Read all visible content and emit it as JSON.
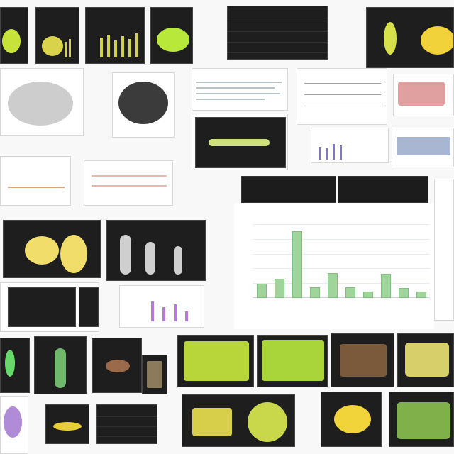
{
  "page": {
    "background": "#f7f8f7",
    "accent_yellow": "#d7e24a",
    "accent_green": "#9fd59b"
  },
  "banners": {
    "left": "",
    "right": ""
  },
  "chart_data": {
    "type": "bar",
    "title": "",
    "xlabel": "",
    "ylabel": "",
    "categories": [
      "",
      "",
      "",
      "",
      "",
      "",
      "",
      "",
      "",
      ""
    ],
    "values": [
      19,
      26,
      90,
      14,
      34,
      14,
      9,
      33,
      13,
      9
    ],
    "ylim": [
      0,
      100
    ],
    "ytick_values": [
      0,
      20,
      40,
      60,
      80,
      100
    ],
    "grid": true,
    "bar_color": "#9fd59b"
  }
}
